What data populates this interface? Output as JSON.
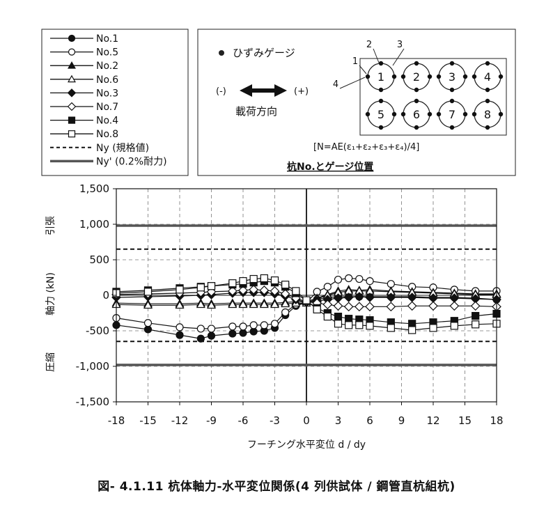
{
  "legend": {
    "items": [
      {
        "label": "No.1",
        "marker": "circle",
        "fill": "filled"
      },
      {
        "label": "No.5",
        "marker": "circle",
        "fill": "open"
      },
      {
        "label": "No.2",
        "marker": "triangle",
        "fill": "filled"
      },
      {
        "label": "No.6",
        "marker": "triangle",
        "fill": "open"
      },
      {
        "label": "No.3",
        "marker": "diamond",
        "fill": "filled"
      },
      {
        "label": "No.7",
        "marker": "diamond",
        "fill": "open"
      },
      {
        "label": "No.4",
        "marker": "square",
        "fill": "filled"
      },
      {
        "label": "No.8",
        "marker": "square",
        "fill": "open"
      },
      {
        "label": "Ny (規格値)",
        "marker": "dashed-line",
        "fill": "none"
      },
      {
        "label": "Ny' (0.2%耐力)",
        "marker": "thick-line",
        "fill": "none"
      }
    ]
  },
  "diagram": {
    "gauge_label": "ひずみゲージ",
    "minus_label": "(-)",
    "plus_label": "(+)",
    "direction_label": "載荷方向",
    "formula": "[N=AE(ε₁+ε₂+ε₃+ε₄)/4]",
    "title": "杭No.とゲージ位置",
    "piles": [
      "1",
      "2",
      "3",
      "4",
      "5",
      "6",
      "7",
      "8"
    ],
    "gauge_numbers": [
      "1",
      "2",
      "3",
      "4"
    ]
  },
  "chart_data": {
    "type": "line",
    "xlabel": "フーチング水平変位 d / dy",
    "ylabel": "軸力 (kN)",
    "y_top_label": "引張",
    "y_bottom_label": "圧縮",
    "xlim": [
      -18,
      18
    ],
    "ylim": [
      -1500,
      1500
    ],
    "x_ticks": [
      "-18",
      "-15",
      "-12",
      "-9",
      "-6",
      "-3",
      "0",
      "3",
      "6",
      "9",
      "12",
      "15",
      "18"
    ],
    "y_ticks": [
      "1,500",
      "1,000",
      "500",
      "0",
      "-500",
      "-1,000",
      "-1,500"
    ],
    "reference_lines": [
      {
        "name": "Ny (規格値)",
        "style": "dashed",
        "values": [
          650,
          -650
        ]
      },
      {
        "name": "Ny' (0.2%耐力)",
        "style": "thick",
        "values": [
          980,
          -980
        ]
      }
    ],
    "series": [
      {
        "name": "No.1",
        "marker": "circle",
        "fill": "filled",
        "x": [
          -18,
          -15,
          -12,
          -10,
          -9,
          -7,
          -6,
          -5,
          -4,
          -3,
          -2,
          -1,
          0,
          1,
          2,
          3,
          4,
          5,
          6,
          8,
          10,
          12,
          14,
          16,
          18
        ],
        "y": [
          -420,
          -480,
          -560,
          -610,
          -570,
          -540,
          -530,
          -510,
          -500,
          -460,
          -280,
          -150,
          -100,
          -60,
          -30,
          -20,
          -20,
          -20,
          -20,
          -20,
          -20,
          -30,
          -30,
          -40,
          -60
        ]
      },
      {
        "name": "No.5",
        "marker": "circle",
        "fill": "open",
        "x": [
          -18,
          -15,
          -12,
          -10,
          -9,
          -7,
          -6,
          -5,
          -4,
          -3,
          -2,
          -1,
          0,
          1,
          2,
          3,
          4,
          5,
          6,
          8,
          10,
          12,
          14,
          16,
          18
        ],
        "y": [
          -320,
          -390,
          -450,
          -470,
          -470,
          -440,
          -440,
          -420,
          -420,
          -400,
          -240,
          -130,
          -100,
          50,
          120,
          220,
          240,
          230,
          200,
          160,
          120,
          110,
          80,
          60,
          60
        ]
      },
      {
        "name": "No.2",
        "marker": "triangle",
        "fill": "filled",
        "x": [
          -18,
          -15,
          -12,
          -10,
          -9,
          -7,
          -6,
          -5,
          -4,
          -3,
          -2,
          -1,
          0,
          1,
          2,
          3,
          4,
          5,
          6,
          8,
          10,
          12,
          14,
          16,
          18
        ],
        "y": [
          -110,
          -120,
          -120,
          -110,
          -120,
          -110,
          -110,
          -110,
          -110,
          -110,
          -100,
          -90,
          -90,
          -40,
          10,
          60,
          80,
          70,
          80,
          60,
          50,
          40,
          30,
          20,
          20
        ]
      },
      {
        "name": "No.6",
        "marker": "triangle",
        "fill": "open",
        "x": [
          -18,
          -15,
          -12,
          -10,
          -9,
          -7,
          -6,
          -5,
          -4,
          -3,
          -2,
          -1,
          0,
          1,
          2,
          3,
          4,
          5,
          6,
          8,
          10,
          12,
          14,
          16,
          18
        ],
        "y": [
          -130,
          -140,
          -140,
          -130,
          -140,
          -130,
          -130,
          -130,
          -130,
          -130,
          -120,
          -110,
          -110,
          -50,
          0,
          40,
          60,
          60,
          60,
          50,
          40,
          30,
          20,
          10,
          10
        ]
      },
      {
        "name": "No.3",
        "marker": "diamond",
        "fill": "filled",
        "x": [
          -18,
          -15,
          -12,
          -10,
          -9,
          -7,
          -6,
          -5,
          -4,
          -3,
          -2,
          -1,
          0,
          1,
          2,
          3,
          4,
          5,
          6,
          8,
          10,
          12,
          14,
          16,
          18
        ],
        "y": [
          -30,
          -20,
          -10,
          0,
          10,
          30,
          40,
          40,
          40,
          20,
          -10,
          -60,
          -100,
          -80,
          -60,
          -40,
          -30,
          -20,
          -30,
          -30,
          -30,
          -40,
          -40,
          -50,
          -60
        ]
      },
      {
        "name": "No.7",
        "marker": "diamond",
        "fill": "open",
        "x": [
          -18,
          -15,
          -12,
          -10,
          -9,
          -7,
          -6,
          -5,
          -4,
          -3,
          -2,
          -1,
          0,
          1,
          2,
          3,
          4,
          5,
          6,
          8,
          10,
          12,
          14,
          16,
          18
        ],
        "y": [
          10,
          20,
          30,
          40,
          50,
          60,
          70,
          80,
          70,
          60,
          20,
          -40,
          -90,
          -110,
          -130,
          -150,
          -160,
          -160,
          -160,
          -160,
          -150,
          -150,
          -150,
          -150,
          -160
        ]
      },
      {
        "name": "No.4",
        "marker": "square",
        "fill": "filled",
        "x": [
          -18,
          -15,
          -12,
          -10,
          -9,
          -7,
          -6,
          -5,
          -4,
          -3,
          -2,
          -1,
          0,
          1,
          2,
          3,
          4,
          5,
          6,
          8,
          10,
          12,
          14,
          16,
          18
        ],
        "y": [
          50,
          70,
          100,
          120,
          130,
          150,
          160,
          180,
          200,
          180,
          120,
          30,
          -80,
          -180,
          -250,
          -300,
          -330,
          -340,
          -350,
          -380,
          -400,
          -380,
          -360,
          -290,
          -260
        ]
      },
      {
        "name": "No.8",
        "marker": "square",
        "fill": "open",
        "x": [
          -18,
          -15,
          -12,
          -10,
          -9,
          -7,
          -6,
          -5,
          -4,
          -3,
          -2,
          -1,
          0,
          1,
          2,
          3,
          4,
          5,
          6,
          8,
          10,
          12,
          14,
          16,
          18
        ],
        "y": [
          30,
          50,
          80,
          110,
          130,
          170,
          200,
          230,
          240,
          210,
          150,
          60,
          -70,
          -200,
          -300,
          -400,
          -420,
          -420,
          -430,
          -460,
          -490,
          -460,
          -430,
          -410,
          -400
        ]
      }
    ]
  },
  "caption": "図- 4.1.11  杭体軸力-水平変位関係(4 列供試体 / 鋼管直杭組杭)"
}
